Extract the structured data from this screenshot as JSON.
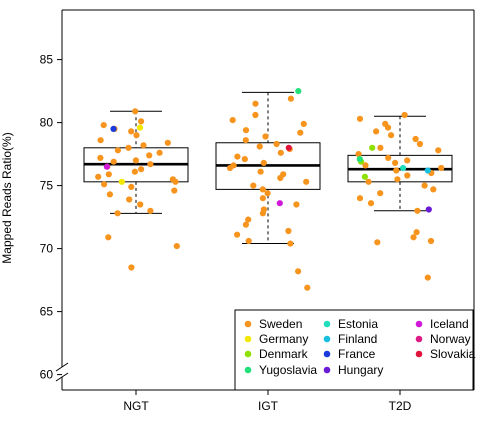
{
  "chart_data": {
    "type": "boxplot",
    "title": "",
    "xlabel": "",
    "ylabel": "Mapped Reads Ratio(%)",
    "ylim": [
      57.5,
      86
    ],
    "yticks": [
      60,
      65,
      70,
      75,
      80,
      85
    ],
    "categories": [
      "NGT",
      "IGT",
      "T2D"
    ],
    "axis_break": true,
    "boxes": [
      {
        "group": "NGT",
        "whisker_low": 72.8,
        "q1": 75.3,
        "median": 76.7,
        "q3": 78.0,
        "whisker_high": 80.9
      },
      {
        "group": "IGT",
        "whisker_low": 70.4,
        "q1": 74.7,
        "median": 76.6,
        "q3": 78.4,
        "whisker_high": 82.4
      },
      {
        "group": "T2D",
        "whisker_low": 73.0,
        "q1": 75.3,
        "median": 76.3,
        "q3": 77.4,
        "whisker_high": 80.5
      }
    ],
    "legend": {
      "position": "bottom-right",
      "entries": [
        {
          "name": "Sweden",
          "color": "#f7941d"
        },
        {
          "name": "Germany",
          "color": "#f2e800"
        },
        {
          "name": "Denmark",
          "color": "#8ee000"
        },
        {
          "name": "Yugoslavia",
          "color": "#22e07a"
        },
        {
          "name": "Estonia",
          "color": "#22ddbb"
        },
        {
          "name": "Finland",
          "color": "#19bfe0"
        },
        {
          "name": "France",
          "color": "#1a3bdb"
        },
        {
          "name": "Hungary",
          "color": "#6a1bd6"
        },
        {
          "name": "Iceland",
          "color": "#d018d8"
        },
        {
          "name": "Norway",
          "color": "#dd1a86"
        },
        {
          "name": "Slovakia",
          "color": "#e0143a"
        }
      ]
    },
    "series": [
      {
        "group": "NGT",
        "country": "Sweden",
        "values": [
          80.9,
          80.1,
          79.8,
          79.5,
          79.3,
          79.0,
          78.6,
          78.4,
          78.2,
          78.0,
          77.8,
          77.6,
          77.4,
          77.2,
          77.0,
          76.9,
          76.7,
          76.5,
          76.3,
          76.1,
          75.9,
          75.7,
          75.5,
          75.3,
          75.1,
          74.9,
          74.6,
          74.3,
          73.9,
          73.5,
          73.0,
          72.8,
          70.9,
          70.2,
          68.5
        ]
      },
      {
        "group": "NGT",
        "country": "France",
        "values": [
          79.5
        ]
      },
      {
        "group": "NGT",
        "country": "Germany",
        "values": [
          79.6,
          75.3
        ]
      },
      {
        "group": "NGT",
        "country": "Iceland",
        "values": [
          76.5
        ]
      },
      {
        "group": "IGT",
        "country": "Sweden",
        "values": [
          81.9,
          81.5,
          80.6,
          80.2,
          79.9,
          79.4,
          79.2,
          78.9,
          78.6,
          78.3,
          78.1,
          77.9,
          77.6,
          77.3,
          77.1,
          76.8,
          76.6,
          76.4,
          76.1,
          75.9,
          75.6,
          75.3,
          75.0,
          74.7,
          74.4,
          74.0,
          73.5,
          73.1,
          72.8,
          72.3,
          71.9,
          71.4,
          71.1,
          70.6,
          70.4,
          68.2,
          66.9,
          64.1
        ]
      },
      {
        "group": "IGT",
        "country": "Yugoslavia",
        "values": [
          82.5
        ]
      },
      {
        "group": "IGT",
        "country": "Slovakia",
        "values": [
          78.0
        ]
      },
      {
        "group": "IGT",
        "country": "Iceland",
        "values": [
          73.6
        ]
      },
      {
        "group": "T2D",
        "country": "Sweden",
        "values": [
          80.6,
          80.3,
          79.9,
          79.6,
          79.3,
          79.0,
          78.7,
          78.3,
          78.0,
          77.8,
          77.5,
          77.2,
          77.0,
          76.8,
          76.6,
          76.4,
          76.2,
          76.0,
          75.8,
          75.5,
          75.3,
          75.0,
          74.7,
          74.4,
          74.0,
          73.6,
          73.0,
          71.3,
          70.9,
          70.6,
          70.5,
          67.7
        ]
      },
      {
        "group": "T2D",
        "country": "Denmark",
        "values": [
          78.0,
          76.9,
          75.7
        ]
      },
      {
        "group": "T2D",
        "country": "Yugoslavia",
        "values": [
          77.1
        ]
      },
      {
        "group": "T2D",
        "country": "Estonia",
        "values": [
          76.4
        ]
      },
      {
        "group": "T2D",
        "country": "Finland",
        "values": [
          76.2
        ]
      },
      {
        "group": "T2D",
        "country": "Hungary",
        "values": [
          73.1
        ]
      }
    ]
  }
}
